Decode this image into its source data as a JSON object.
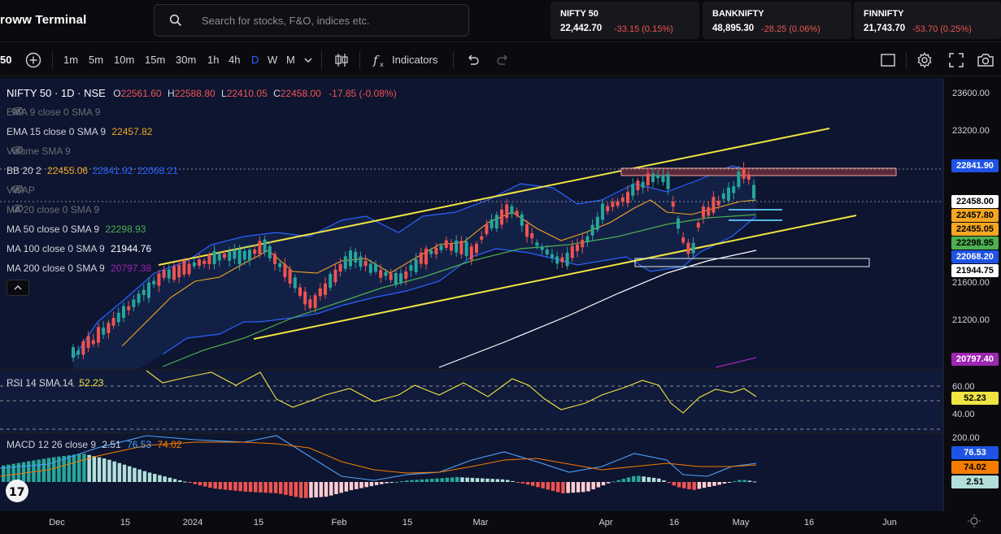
{
  "header": {
    "app_title": "roww Terminal",
    "search_placeholder": "Search for stocks, F&O, indices etc.",
    "tickers": [
      {
        "name": "NIFTY 50",
        "value": "22,442.70",
        "change": "-33.15 (0.15%)"
      },
      {
        "name": "BANKNIFTY",
        "value": "48,895.30",
        "change": "-28.25 (0.06%)"
      },
      {
        "name": "FINNIFTY",
        "value": "21,743.70",
        "change": "-53.70 (0.25%)"
      }
    ]
  },
  "toolbar": {
    "symbol_fragment": "50",
    "intervals": [
      "1m",
      "5m",
      "10m",
      "15m",
      "30m",
      "1h",
      "4h",
      "D",
      "W",
      "M"
    ],
    "active_interval": "D",
    "indicators_label": "Indicators",
    "icons": [
      "add-symbol-icon",
      "chevron-down-icon",
      "candle-type-icon",
      "function-icon",
      "undo-icon",
      "redo-icon",
      "layout-square-icon",
      "settings-gear-icon",
      "fullscreen-icon",
      "camera-icon"
    ]
  },
  "legend": {
    "symbol": "NIFTY 50 · 1D · NSE",
    "o_label": "O",
    "o": "22561.60",
    "h_label": "H",
    "h": "22588.80",
    "l_label": "L",
    "l": "22410.05",
    "c_label": "C",
    "c": "22458.00",
    "chg": "-17.85 (-0.08%)",
    "ema9": "EMA 9 close 0 SMA 9",
    "ema15": "EMA 15 close 0 SMA 9",
    "ema15_val": "22457.82",
    "volume": "Volume SMA 9",
    "bb": "BB 20 2",
    "bb_mid": "22455.06",
    "bb_up": "22841.92",
    "bb_low": "22068.21",
    "vwap": "VWAP",
    "ma20": "MA 20 close 0 SMA 9",
    "ma50": "MA 50 close 0 SMA 9",
    "ma50_val": "22298.93",
    "ma100": "MA 100 close 0 SMA 9",
    "ma100_val": "21944.76",
    "ma200": "MA 200 close 0 SMA 9",
    "ma200_val": "20797.38"
  },
  "price_axis": [
    "23600.00",
    "23200.00",
    "21600.00",
    "21200.00"
  ],
  "price_labels": [
    {
      "text": "22841.90",
      "bg": "#1e53e5",
      "fg": "#ffffff"
    },
    {
      "text": "22458.00",
      "bg": "#ffffff",
      "fg": "#000000"
    },
    {
      "text": "22457.80",
      "bg": "#f5a623",
      "fg": "#000000"
    },
    {
      "text": "22455.05",
      "bg": "#f5a623",
      "fg": "#000000"
    },
    {
      "text": "22298.95",
      "bg": "#4caf50",
      "fg": "#000000"
    },
    {
      "text": "22068.20",
      "bg": "#1e53e5",
      "fg": "#ffffff"
    },
    {
      "text": "21944.75",
      "bg": "#ffffff",
      "fg": "#000000"
    },
    {
      "text": "20797.40",
      "bg": "#9c27b0",
      "fg": "#ffffff"
    }
  ],
  "rsi": {
    "label": "RSI 14 SMA 14",
    "value": "52.23",
    "axis": [
      "60.00",
      "40.00"
    ]
  },
  "macd": {
    "label": "MACD 12 26 close 9",
    "v1": "2.51",
    "v2": "76.53",
    "v3": "74.02",
    "axis_top": "200.00"
  },
  "time_axis": [
    "Dec",
    "15",
    "2024",
    "15",
    "Feb",
    "15",
    "Mar",
    "Apr",
    "16",
    "May",
    "16",
    "Jun"
  ],
  "colors": {
    "up": "#26a69a",
    "down": "#ef5350",
    "bb": "#2962ff",
    "ema": "#f5a623",
    "ma50": "#4caf50",
    "ma200": "#ffffff",
    "channel": "#f0e442"
  }
}
